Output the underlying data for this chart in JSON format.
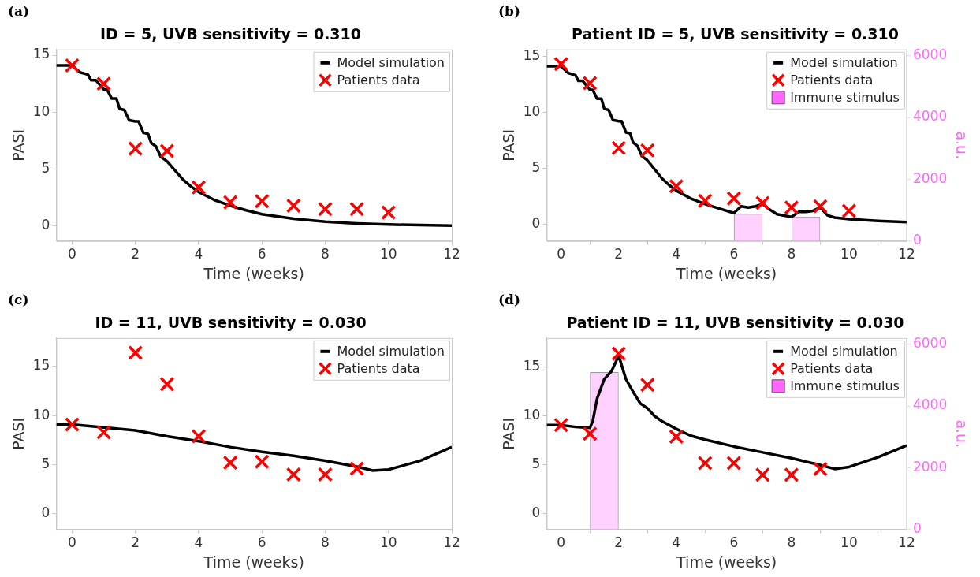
{
  "chart_data": [
    {
      "type": "line",
      "title": "ID = 5, UVB sensitivity = 0.310",
      "xlabel": "Time (weeks)",
      "ylabel": "PASI",
      "annotations": [
        "(a)"
      ],
      "xlim": [
        -0.5,
        12
      ],
      "xticks": [
        0,
        2,
        4,
        6,
        8,
        10,
        12
      ],
      "ylim": [
        -1.3,
        15.5
      ],
      "yticks": [
        0,
        5,
        10,
        15
      ],
      "legend": "top right",
      "series": [
        {
          "name": "Model simulation",
          "color": "#000000",
          "marker": "none",
          "x": [
            -0.5,
            0,
            0.25,
            0.5,
            0.6,
            0.75,
            1.0,
            1.1,
            1.25,
            1.4,
            1.5,
            1.65,
            1.8,
            2.0,
            2.1,
            2.25,
            2.4,
            2.5,
            2.65,
            2.8,
            3.0,
            3.25,
            3.5,
            3.75,
            4.0,
            4.5,
            5,
            5.5,
            6,
            7,
            8,
            9,
            10,
            11,
            12
          ],
          "values": [
            14.1,
            14.1,
            13.5,
            13.3,
            12.8,
            12.8,
            12.0,
            12.0,
            11.2,
            11.2,
            10.3,
            10.2,
            9.3,
            9.2,
            9.2,
            8.2,
            8.1,
            7.3,
            7.0,
            6.1,
            5.7,
            4.9,
            4.1,
            3.5,
            3.0,
            2.3,
            1.8,
            1.4,
            1.05,
            0.65,
            0.4,
            0.25,
            0.15,
            0.1,
            0.05
          ]
        },
        {
          "name": "Patients data",
          "type": "scatter",
          "color": "#ff0000",
          "marker": "cross",
          "x": [
            0,
            1,
            2,
            3,
            4,
            5,
            6,
            7,
            8,
            9,
            10
          ],
          "values": [
            14.1,
            12.5,
            6.8,
            6.6,
            3.4,
            2.1,
            2.2,
            1.8,
            1.5,
            1.5,
            1.2
          ]
        }
      ]
    },
    {
      "type": "line",
      "title": "Patient ID = 5, UVB sensitivity = 0.310",
      "xlabel": "Time (weeks)",
      "ylabel": "PASI",
      "y2label": "a.u.",
      "annotations": [
        "(b)"
      ],
      "xlim": [
        -0.5,
        12
      ],
      "xticks": [
        0,
        2,
        4,
        6,
        8,
        10,
        12
      ],
      "ylim": [
        -1.5,
        15.6
      ],
      "yticks": [
        0,
        5,
        10,
        15
      ],
      "y2lim": [
        0,
        6200
      ],
      "y2ticks": [
        0,
        2000,
        4000,
        6000
      ],
      "legend": "top right",
      "series": [
        {
          "name": "Model simulation",
          "color": "#000000",
          "marker": "none",
          "x": [
            -0.5,
            0,
            0.25,
            0.5,
            0.6,
            0.75,
            1.0,
            1.1,
            1.25,
            1.4,
            1.5,
            1.65,
            1.8,
            2.0,
            2.1,
            2.25,
            2.4,
            2.5,
            2.65,
            2.8,
            3.0,
            3.25,
            3.5,
            3.75,
            4.0,
            4.5,
            5,
            5.5,
            6,
            6.25,
            6.5,
            6.75,
            7.0,
            7.25,
            7.5,
            8,
            8.25,
            8.5,
            8.75,
            9,
            9.25,
            9.5,
            10,
            11,
            12
          ],
          "values": [
            14.1,
            14.1,
            13.5,
            13.3,
            12.8,
            12.8,
            12.0,
            12.0,
            11.2,
            11.2,
            10.3,
            10.2,
            9.3,
            9.2,
            9.2,
            8.2,
            8.1,
            7.3,
            7.0,
            6.1,
            5.7,
            4.9,
            4.1,
            3.5,
            3.0,
            2.3,
            1.8,
            1.4,
            1.0,
            1.6,
            1.5,
            1.6,
            1.8,
            1.3,
            0.9,
            0.65,
            1.1,
            1.1,
            1.2,
            1.5,
            0.8,
            0.6,
            0.45,
            0.3,
            0.2
          ]
        },
        {
          "name": "Patients data",
          "type": "scatter",
          "color": "#ff0000",
          "marker": "cross",
          "x": [
            0,
            1,
            2,
            3,
            4,
            5,
            6,
            7,
            8,
            9,
            10
          ],
          "values": [
            14.3,
            12.6,
            6.8,
            6.6,
            3.4,
            2.1,
            2.3,
            1.9,
            1.5,
            1.6,
            1.2
          ]
        },
        {
          "name": "Immune stimulus",
          "type": "bar",
          "color": "#ff66ff",
          "axis": "y2",
          "x": [
            6.5,
            8.5
          ],
          "values": [
            880,
            790
          ]
        }
      ]
    },
    {
      "type": "line",
      "title": "ID = 11, UVB sensitivity = 0.030",
      "xlabel": "Time (weeks)",
      "ylabel": "PASI",
      "annotations": [
        "(c)"
      ],
      "xlim": [
        -0.5,
        12
      ],
      "xticks": [
        0,
        2,
        4,
        6,
        8,
        10,
        12
      ],
      "ylim": [
        -1.6,
        17.9
      ],
      "yticks": [
        0,
        5,
        10,
        15
      ],
      "legend": "top right",
      "series": [
        {
          "name": "Model simulation",
          "color": "#000000",
          "marker": "none",
          "x": [
            -0.5,
            0,
            1,
            2,
            3,
            4,
            5,
            6,
            7,
            8,
            9,
            9.5,
            10,
            11,
            12
          ],
          "values": [
            9.1,
            9.1,
            8.8,
            8.5,
            7.9,
            7.4,
            6.8,
            6.3,
            5.9,
            5.4,
            4.8,
            4.4,
            4.5,
            5.4,
            6.8
          ]
        },
        {
          "name": "Patients data",
          "type": "scatter",
          "color": "#ff0000",
          "marker": "cross",
          "x": [
            0,
            1,
            2,
            3,
            4,
            5,
            6,
            7,
            8,
            9
          ],
          "values": [
            9.1,
            8.3,
            16.4,
            13.2,
            7.9,
            5.2,
            5.3,
            4.0,
            4.0,
            4.6
          ]
        }
      ]
    },
    {
      "type": "line",
      "title": "Patient ID = 11, UVB sensitivity = 0.030",
      "xlabel": "Time (weeks)",
      "ylabel": "PASI",
      "y2label": "a.u.",
      "annotations": [
        "(d)"
      ],
      "xlim": [
        -0.5,
        12
      ],
      "xticks": [
        0,
        2,
        4,
        6,
        8,
        10,
        12
      ],
      "ylim": [
        -1.6,
        18
      ],
      "yticks": [
        0,
        5,
        10,
        15
      ],
      "y2lim": [
        0,
        6200
      ],
      "y2ticks": [
        0,
        2000,
        4000,
        6000
      ],
      "legend": "top right",
      "series": [
        {
          "name": "Model simulation",
          "color": "#000000",
          "marker": "none",
          "x": [
            -0.5,
            0,
            0.5,
            1,
            1.1,
            1.25,
            1.5,
            1.75,
            2,
            2.25,
            2.5,
            2.75,
            3,
            3.25,
            3.5,
            4,
            4.5,
            5,
            6,
            7,
            8,
            9,
            9.5,
            10,
            11,
            12
          ],
          "values": [
            9.1,
            9.1,
            8.9,
            8.8,
            9.5,
            11.8,
            13.8,
            14.6,
            16.2,
            13.8,
            12.5,
            11.3,
            10.8,
            10.0,
            9.5,
            8.7,
            8.0,
            7.6,
            6.9,
            6.3,
            5.7,
            5.0,
            4.6,
            4.8,
            5.8,
            7.0
          ]
        },
        {
          "name": "Patients data",
          "type": "scatter",
          "color": "#ff0000",
          "marker": "cross",
          "x": [
            0,
            1,
            2,
            3,
            4,
            5,
            6,
            7,
            8,
            9
          ],
          "values": [
            9.1,
            8.2,
            16.4,
            13.2,
            7.9,
            5.2,
            5.2,
            4.0,
            4.0,
            4.6
          ]
        },
        {
          "name": "Immune stimulus",
          "type": "bar",
          "color": "#ff66ff",
          "axis": "y2",
          "x": [
            1.5
          ],
          "values": [
            5100
          ]
        }
      ]
    }
  ]
}
